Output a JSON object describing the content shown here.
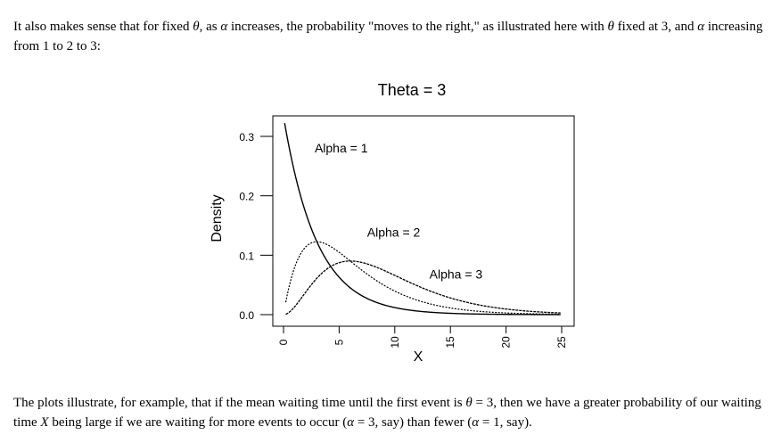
{
  "text": {
    "top": [
      {
        "t": "It also makes sense that for fixed "
      },
      {
        "t": "θ",
        "m": true
      },
      {
        "t": ", as "
      },
      {
        "t": "α",
        "m": true
      },
      {
        "t": " increases, the probability \"moves to the right,\" as illustrated here with "
      },
      {
        "t": "θ",
        "m": true
      },
      {
        "t": " fixed at 3, and "
      },
      {
        "t": "α",
        "m": true
      },
      {
        "t": " increasing from 1 to 2 to 3:"
      }
    ],
    "bottom": [
      {
        "t": "The plots illustrate, for example, that if the mean waiting time until the first event is "
      },
      {
        "t": "θ",
        "m": true
      },
      {
        "t": " = 3, then we have a greater probability of our waiting time "
      },
      {
        "t": "X",
        "m": true
      },
      {
        "t": " being large if we are waiting for more events to occur ("
      },
      {
        "t": "α",
        "m": true
      },
      {
        "t": " = 3, say) than fewer ("
      },
      {
        "t": "α",
        "m": true
      },
      {
        "t": " = 1, say)."
      }
    ]
  },
  "chart_data": {
    "type": "line",
    "title": "Theta = 3",
    "xlabel": "X",
    "ylabel": "Density",
    "xlim": [
      0,
      25
    ],
    "ylim": [
      0,
      0.33
    ],
    "x_ticks": [
      "0",
      "5",
      "10",
      "15",
      "20",
      "25"
    ],
    "y_ticks": [
      "0.0",
      "0.1",
      "0.2",
      "0.3"
    ],
    "grid": false,
    "theta": 3,
    "series": [
      {
        "name": "Alpha = 1",
        "alpha": 1,
        "label": "Alpha = 1",
        "x": [
          0.1,
          0.5,
          1,
          1.5,
          2,
          3,
          4,
          5,
          6,
          7,
          8,
          10,
          12,
          15,
          18,
          21,
          25
        ],
        "y": [
          0.322,
          0.282,
          0.239,
          0.202,
          0.171,
          0.123,
          0.088,
          0.063,
          0.045,
          0.032,
          0.023,
          0.012,
          0.006,
          0.002,
          0.001,
          0.0003,
          0.0001
        ]
      },
      {
        "name": "Alpha = 2",
        "alpha": 2,
        "label": "Alpha = 2",
        "x": [
          0.1,
          0.5,
          1,
          1.5,
          2,
          3,
          4,
          5,
          6,
          7,
          8,
          10,
          12,
          15,
          18,
          21,
          25
        ],
        "y": [
          0.011,
          0.047,
          0.08,
          0.101,
          0.114,
          0.123,
          0.117,
          0.105,
          0.09,
          0.075,
          0.062,
          0.04,
          0.024,
          0.011,
          0.004,
          0.002,
          0.0007
        ]
      },
      {
        "name": "Alpha = 3",
        "alpha": 3,
        "label": "Alpha = 3",
        "x": [
          0.1,
          0.5,
          1,
          1.5,
          2,
          3,
          4,
          5,
          6,
          7,
          8,
          10,
          12,
          15,
          18,
          21,
          25
        ],
        "y": [
          0.0002,
          0.004,
          0.013,
          0.025,
          0.038,
          0.061,
          0.078,
          0.088,
          0.09,
          0.087,
          0.082,
          0.066,
          0.049,
          0.028,
          0.015,
          0.007,
          0.0023
        ]
      }
    ]
  }
}
